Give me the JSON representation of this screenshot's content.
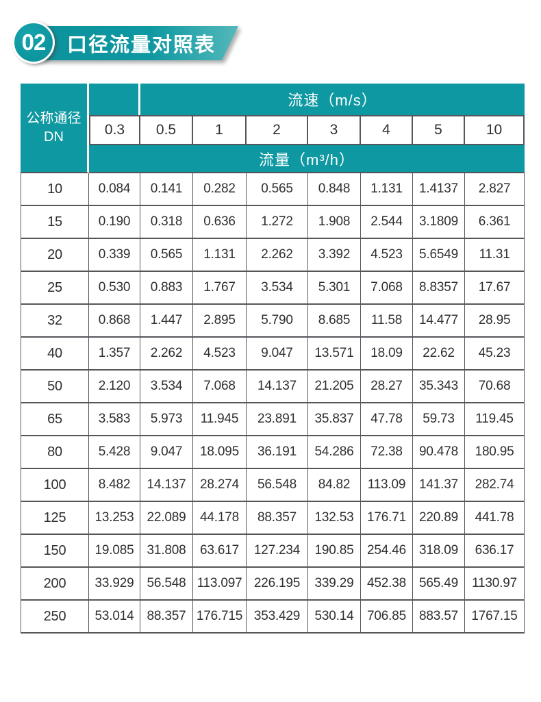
{
  "page": {
    "background": "#ffffff"
  },
  "header": {
    "badge_number": "02",
    "title": "口径流量对照表",
    "teal": "#0E98A1",
    "banner_gradient_start": "#0C929C",
    "banner_gradient_end": "#54B8BB"
  },
  "table": {
    "corner_line1": "公称通径",
    "corner_line2": "DN",
    "velocity_header": "流速（m/s）",
    "flow_header": "流量（m³/h）",
    "header_fill": "#0E98A1",
    "border_color": "#55565A",
    "velocity_labels": [
      "0.3",
      "0.5",
      "1",
      "2",
      "3",
      "4",
      "5",
      "10"
    ],
    "rows": [
      {
        "dn": "10",
        "values": [
          "0.084",
          "0.141",
          "0.282",
          "0.565",
          "0.848",
          "1.131",
          "1.4137",
          "2.827"
        ]
      },
      {
        "dn": "15",
        "values": [
          "0.190",
          "0.318",
          "0.636",
          "1.272",
          "1.908",
          "2.544",
          "3.1809",
          "6.361"
        ]
      },
      {
        "dn": "20",
        "values": [
          "0.339",
          "0.565",
          "1.131",
          "2.262",
          "3.392",
          "4.523",
          "5.6549",
          "11.31"
        ]
      },
      {
        "dn": "25",
        "values": [
          "0.530",
          "0.883",
          "1.767",
          "3.534",
          "5.301",
          "7.068",
          "8.8357",
          "17.67"
        ]
      },
      {
        "dn": "32",
        "values": [
          "0.868",
          "1.447",
          "2.895",
          "5.790",
          "8.685",
          "11.58",
          "14.477",
          "28.95"
        ]
      },
      {
        "dn": "40",
        "values": [
          "1.357",
          "2.262",
          "4.523",
          "9.047",
          "13.571",
          "18.09",
          "22.62",
          "45.23"
        ]
      },
      {
        "dn": "50",
        "values": [
          "2.120",
          "3.534",
          "7.068",
          "14.137",
          "21.205",
          "28.27",
          "35.343",
          "70.68"
        ]
      },
      {
        "dn": "65",
        "values": [
          "3.583",
          "5.973",
          "11.945",
          "23.891",
          "35.837",
          "47.78",
          "59.73",
          "119.45"
        ]
      },
      {
        "dn": "80",
        "values": [
          "5.428",
          "9.047",
          "18.095",
          "36.191",
          "54.286",
          "72.38",
          "90.478",
          "180.95"
        ]
      },
      {
        "dn": "100",
        "values": [
          "8.482",
          "14.137",
          "28.274",
          "56.548",
          "84.82",
          "113.09",
          "141.37",
          "282.74"
        ]
      },
      {
        "dn": "125",
        "values": [
          "13.253",
          "22.089",
          "44.178",
          "88.357",
          "132.53",
          "176.71",
          "220.89",
          "441.78"
        ]
      },
      {
        "dn": "150",
        "values": [
          "19.085",
          "31.808",
          "63.617",
          "127.234",
          "190.85",
          "254.46",
          "318.09",
          "636.17"
        ]
      },
      {
        "dn": "200",
        "values": [
          "33.929",
          "56.548",
          "113.097",
          "226.195",
          "339.29",
          "452.38",
          "565.49",
          "1130.97"
        ]
      },
      {
        "dn": "250",
        "values": [
          "53.014",
          "88.357",
          "176.715",
          "353.429",
          "530.14",
          "706.85",
          "883.57",
          "1767.15"
        ]
      }
    ]
  },
  "chart_data": {
    "type": "table",
    "title": "口径流量对照表",
    "row_header": "公称通径 DN",
    "column_group_header": "流速（m/s）",
    "cell_unit_header": "流量（m³/h）",
    "velocities_m_per_s": [
      0.3,
      0.5,
      1,
      2,
      3,
      4,
      5,
      10
    ],
    "rows": [
      {
        "dn": 10,
        "flows_m3_per_h": [
          0.084,
          0.141,
          0.282,
          0.565,
          0.848,
          1.131,
          1.4137,
          2.827
        ]
      },
      {
        "dn": 15,
        "flows_m3_per_h": [
          0.19,
          0.318,
          0.636,
          1.272,
          1.908,
          2.544,
          3.1809,
          6.361
        ]
      },
      {
        "dn": 20,
        "flows_m3_per_h": [
          0.339,
          0.565,
          1.131,
          2.262,
          3.392,
          4.523,
          5.6549,
          11.31
        ]
      },
      {
        "dn": 25,
        "flows_m3_per_h": [
          0.53,
          0.883,
          1.767,
          3.534,
          5.301,
          7.068,
          8.8357,
          17.67
        ]
      },
      {
        "dn": 32,
        "flows_m3_per_h": [
          0.868,
          1.447,
          2.895,
          5.79,
          8.685,
          11.58,
          14.477,
          28.95
        ]
      },
      {
        "dn": 40,
        "flows_m3_per_h": [
          1.357,
          2.262,
          4.523,
          9.047,
          13.571,
          18.09,
          22.62,
          45.23
        ]
      },
      {
        "dn": 50,
        "flows_m3_per_h": [
          2.12,
          3.534,
          7.068,
          14.137,
          21.205,
          28.27,
          35.343,
          70.68
        ]
      },
      {
        "dn": 65,
        "flows_m3_per_h": [
          3.583,
          5.973,
          11.945,
          23.891,
          35.837,
          47.78,
          59.73,
          119.45
        ]
      },
      {
        "dn": 80,
        "flows_m3_per_h": [
          5.428,
          9.047,
          18.095,
          36.191,
          54.286,
          72.38,
          90.478,
          180.95
        ]
      },
      {
        "dn": 100,
        "flows_m3_per_h": [
          8.482,
          14.137,
          28.274,
          56.548,
          84.82,
          113.09,
          141.37,
          282.74
        ]
      },
      {
        "dn": 125,
        "flows_m3_per_h": [
          13.253,
          22.089,
          44.178,
          88.357,
          132.53,
          176.71,
          220.89,
          441.78
        ]
      },
      {
        "dn": 150,
        "flows_m3_per_h": [
          19.085,
          31.808,
          63.617,
          127.234,
          190.85,
          254.46,
          318.09,
          636.17
        ]
      },
      {
        "dn": 200,
        "flows_m3_per_h": [
          33.929,
          56.548,
          113.097,
          226.195,
          339.29,
          452.38,
          565.49,
          1130.97
        ]
      },
      {
        "dn": 250,
        "flows_m3_per_h": [
          53.014,
          88.357,
          176.715,
          353.429,
          530.14,
          706.85,
          883.57,
          1767.15
        ]
      }
    ]
  }
}
